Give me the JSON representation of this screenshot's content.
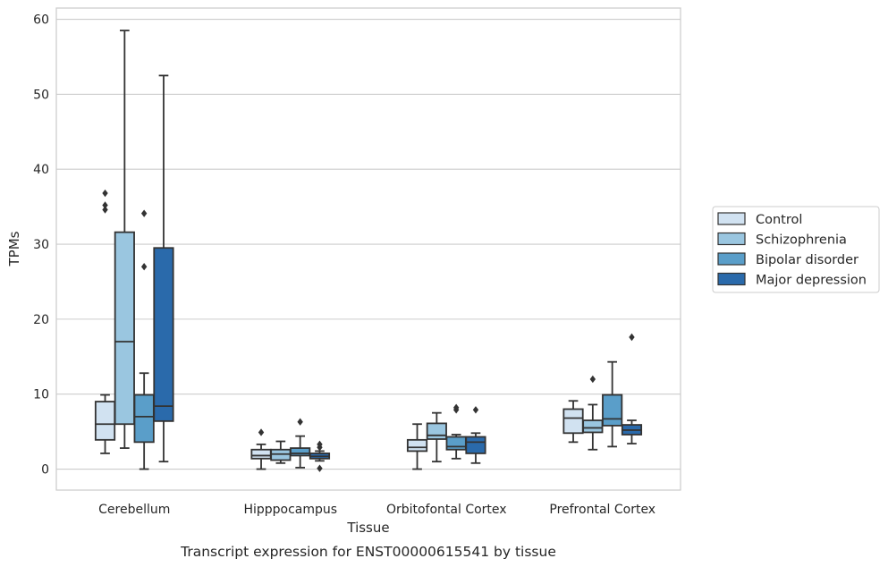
{
  "chart_data": {
    "type": "box",
    "title": "Transcript expression for ENST00000615541 by tissue",
    "xlabel": "Tissue",
    "ylabel": "TPMs",
    "ylim": [
      -2.8,
      61.5
    ],
    "yticks": [
      "0",
      "10",
      "20",
      "30",
      "40",
      "50",
      "60"
    ],
    "ytick_values": [
      0,
      10,
      20,
      30,
      40,
      50,
      60
    ],
    "grid": true,
    "legend_position": "right",
    "categories": [
      "Cerebellum",
      "Hipppocampus",
      "Orbitofontal Cortex",
      "Prefrontal Cortex"
    ],
    "series": [
      {
        "name": "Control",
        "color": "#d1e2f1",
        "boxes": [
          {
            "whisker_low": 2.1,
            "q1": 3.9,
            "median": 6.0,
            "q3": 9.0,
            "whisker_high": 9.9,
            "outliers": [
              34.6,
              35.2,
              36.8
            ]
          },
          {
            "whisker_low": 0.0,
            "q1": 1.4,
            "median": 1.8,
            "q3": 2.6,
            "whisker_high": 3.3,
            "outliers": [
              4.9
            ]
          },
          {
            "whisker_low": 0.0,
            "q1": 2.4,
            "median": 2.9,
            "q3": 3.9,
            "whisker_high": 6.0,
            "outliers": []
          },
          {
            "whisker_low": 3.6,
            "q1": 4.8,
            "median": 6.8,
            "q3": 8.0,
            "whisker_high": 9.1,
            "outliers": []
          }
        ]
      },
      {
        "name": "Schizophrenia",
        "color": "#9ac6e0",
        "boxes": [
          {
            "whisker_low": 2.8,
            "q1": 6.0,
            "median": 17.0,
            "q3": 31.6,
            "whisker_high": 58.5,
            "outliers": []
          },
          {
            "whisker_low": 0.8,
            "q1": 1.2,
            "median": 2.0,
            "q3": 2.6,
            "whisker_high": 3.7,
            "outliers": []
          },
          {
            "whisker_low": 1.0,
            "q1": 4.0,
            "median": 4.5,
            "q3": 6.1,
            "whisker_high": 7.5,
            "outliers": []
          },
          {
            "whisker_low": 2.6,
            "q1": 4.9,
            "median": 5.5,
            "q3": 6.5,
            "whisker_high": 8.6,
            "outliers": [
              12.0
            ]
          }
        ]
      },
      {
        "name": "Bipolar disorder",
        "color": "#5a9ec9",
        "boxes": [
          {
            "whisker_low": 0.0,
            "q1": 3.6,
            "median": 7.0,
            "q3": 9.9,
            "whisker_high": 12.8,
            "outliers": [
              27.0,
              34.1
            ]
          },
          {
            "whisker_low": 0.2,
            "q1": 1.8,
            "median": 2.1,
            "q3": 2.8,
            "whisker_high": 4.4,
            "outliers": [
              6.3
            ]
          },
          {
            "whisker_low": 1.4,
            "q1": 2.6,
            "median": 3.0,
            "q3": 4.3,
            "whisker_high": 4.6,
            "outliers": [
              7.9,
              8.2
            ]
          },
          {
            "whisker_low": 3.0,
            "q1": 5.8,
            "median": 6.7,
            "q3": 9.9,
            "whisker_high": 14.3,
            "outliers": []
          }
        ]
      },
      {
        "name": "Major depression",
        "color": "#2a6aab",
        "boxes": [
          {
            "whisker_low": 1.0,
            "q1": 6.4,
            "median": 8.4,
            "q3": 29.5,
            "whisker_high": 52.5,
            "outliers": []
          },
          {
            "whisker_low": 1.1,
            "q1": 1.4,
            "median": 1.7,
            "q3": 2.1,
            "whisker_high": 2.4,
            "outliers": [
              0.1,
              2.9,
              3.3
            ]
          },
          {
            "whisker_low": 0.8,
            "q1": 2.1,
            "median": 3.6,
            "q3": 4.3,
            "whisker_high": 4.8,
            "outliers": [
              7.9
            ]
          },
          {
            "whisker_low": 3.4,
            "q1": 4.6,
            "median": 5.2,
            "q3": 5.9,
            "whisker_high": 6.5,
            "outliers": [
              17.6
            ]
          }
        ]
      }
    ]
  }
}
